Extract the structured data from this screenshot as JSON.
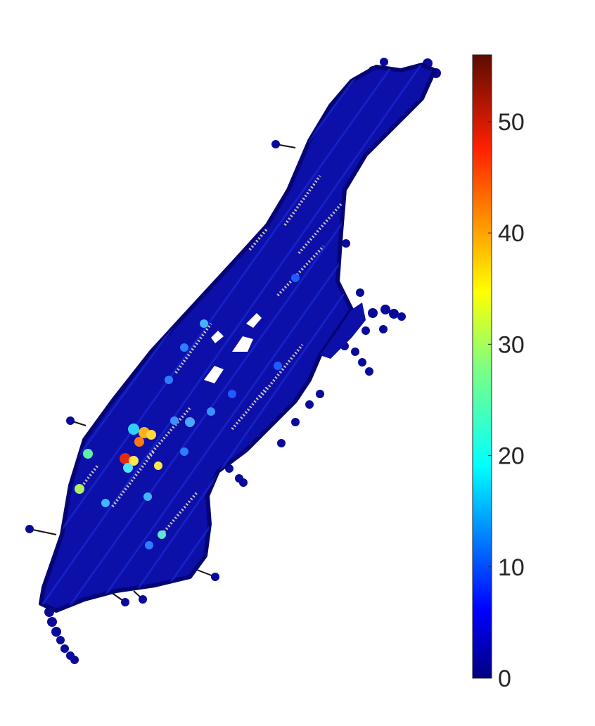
{
  "chart_data": {
    "type": "scatter",
    "title": "",
    "xlabel": "",
    "ylabel": "",
    "axes_visible": false,
    "description_kind": "graph network map colored by value",
    "colormap": "jet",
    "colorbar": {
      "location": "right",
      "clim": [
        0,
        56
      ],
      "ticks": [
        0,
        10,
        20,
        30,
        40,
        50
      ],
      "tick_labels": [
        "0",
        "10",
        "20",
        "30",
        "40",
        "50"
      ]
    },
    "value_summary": {
      "min": 0,
      "max": 56,
      "typical": 2
    }
  }
}
